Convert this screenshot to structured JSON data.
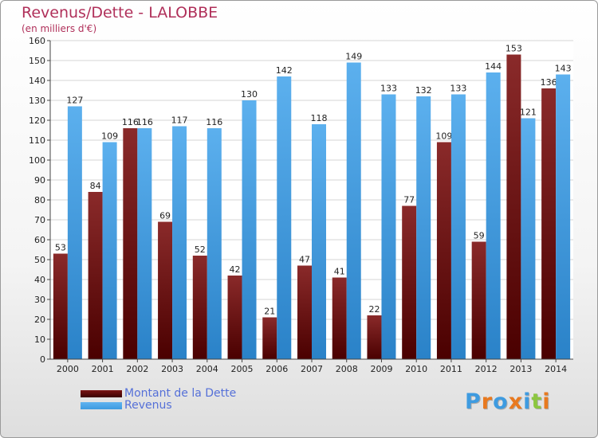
{
  "title": "Revenus/Dette - LALOBBE",
  "subtitle": "(en milliers d'€)",
  "colors": {
    "dette": "#7a1414",
    "revenus": "#3e9be0",
    "title": "#b0305a",
    "legend_text": "#5570d8"
  },
  "legend": [
    {
      "label": "Montant de la Dette",
      "color": "#7a1414"
    },
    {
      "label": "Revenus",
      "color": "#3e9be0"
    }
  ],
  "logo": {
    "text": "Proxiti",
    "letter_colors": [
      "#3e9be0",
      "#e8791f",
      "#3e9be0",
      "#e8791f",
      "#3e9be0",
      "#8cc640",
      "#e8791f"
    ]
  },
  "chart_data": {
    "type": "bar",
    "categories": [
      "2000",
      "2001",
      "2002",
      "2003",
      "2004",
      "2005",
      "2006",
      "2007",
      "2008",
      "2009",
      "2010",
      "2011",
      "2012",
      "2013",
      "2014"
    ],
    "series": [
      {
        "name": "Montant de la Dette",
        "values": [
          53,
          84,
          116,
          69,
          52,
          42,
          21,
          47,
          41,
          22,
          77,
          109,
          59,
          153,
          136
        ]
      },
      {
        "name": "Revenus",
        "values": [
          127,
          109,
          116,
          117,
          116,
          130,
          142,
          118,
          149,
          133,
          132,
          133,
          144,
          121,
          143
        ]
      }
    ],
    "ylim": [
      0,
      160
    ],
    "yticks": [
      0,
      10,
      20,
      30,
      40,
      50,
      60,
      70,
      80,
      90,
      100,
      110,
      120,
      130,
      140,
      150,
      160
    ],
    "grid": true,
    "legend_position": "bottom-left"
  }
}
